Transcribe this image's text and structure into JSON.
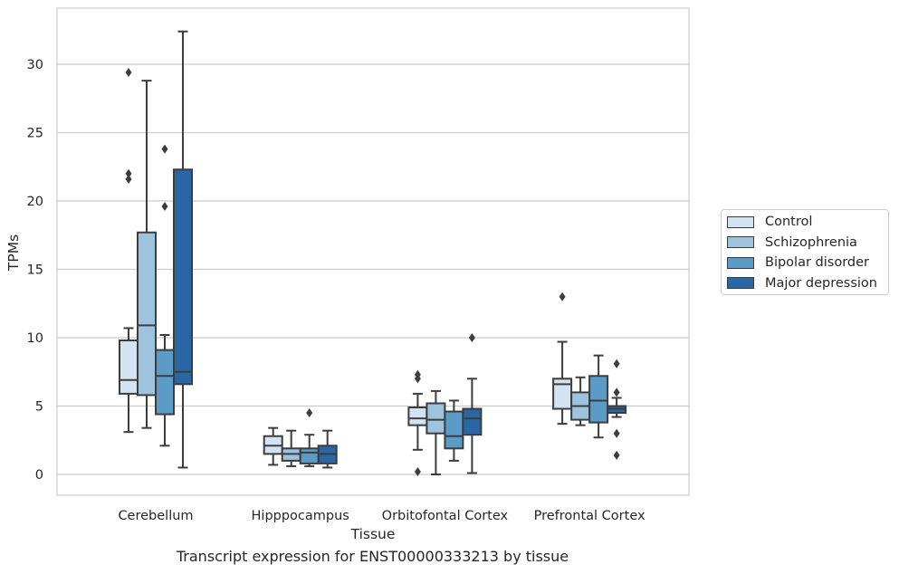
{
  "chart_data": {
    "type": "box",
    "title": "",
    "xlabel": "Tissue",
    "ylabel": "TPMs",
    "caption": "Transcript expression for ENST00000333213 by tissue",
    "categories": [
      "Cerebellum",
      "Hipppocampus",
      "Orbitofontal Cortex",
      "Prefrontal Cortex"
    ],
    "ylim": [
      -1.5,
      34
    ],
    "yticks": [
      0,
      5,
      10,
      15,
      20,
      25,
      30
    ],
    "grid": true,
    "legend_position": "right",
    "series": [
      {
        "name": "Control",
        "color": "#d4e3f2",
        "boxes": [
          {
            "whislo": 3.1,
            "q1": 5.9,
            "med": 6.9,
            "q3": 9.8,
            "whishi": 10.7,
            "fliers": [
              21.6,
              22.0,
              29.4
            ]
          },
          {
            "whislo": 0.7,
            "q1": 1.5,
            "med": 2.1,
            "q3": 2.8,
            "whishi": 3.4,
            "fliers": []
          },
          {
            "whislo": 1.8,
            "q1": 3.6,
            "med": 4.1,
            "q3": 4.9,
            "whishi": 5.9,
            "fliers": [
              0.2,
              7.0,
              7.3
            ]
          },
          {
            "whislo": 3.7,
            "q1": 4.8,
            "med": 6.6,
            "q3": 7.0,
            "whishi": 9.7,
            "fliers": [
              13.0
            ]
          }
        ]
      },
      {
        "name": "Schizophrenia",
        "color": "#9dc3de",
        "boxes": [
          {
            "whislo": 3.4,
            "q1": 5.8,
            "med": 10.9,
            "q3": 17.7,
            "whishi": 28.8,
            "fliers": []
          },
          {
            "whislo": 0.6,
            "q1": 1.0,
            "med": 1.5,
            "q3": 1.9,
            "whishi": 3.2,
            "fliers": []
          },
          {
            "whislo": 0.0,
            "q1": 3.0,
            "med": 4.0,
            "q3": 5.2,
            "whishi": 6.1,
            "fliers": []
          },
          {
            "whislo": 3.6,
            "q1": 4.0,
            "med": 5.0,
            "q3": 6.0,
            "whishi": 7.1,
            "fliers": []
          }
        ]
      },
      {
        "name": "Bipolar disorder",
        "color": "#5a9bc8",
        "boxes": [
          {
            "whislo": 2.1,
            "q1": 4.4,
            "med": 7.2,
            "q3": 9.1,
            "whishi": 10.2,
            "fliers": [
              19.6,
              23.8
            ]
          },
          {
            "whislo": 0.6,
            "q1": 0.8,
            "med": 1.6,
            "q3": 1.9,
            "whishi": 2.9,
            "fliers": [
              4.5
            ]
          },
          {
            "whislo": 1.0,
            "q1": 1.9,
            "med": 2.8,
            "q3": 4.6,
            "whishi": 5.4,
            "fliers": []
          },
          {
            "whislo": 2.7,
            "q1": 3.8,
            "med": 5.4,
            "q3": 7.2,
            "whishi": 8.7,
            "fliers": []
          }
        ]
      },
      {
        "name": "Major depression",
        "color": "#2866a5",
        "boxes": [
          {
            "whislo": 0.5,
            "q1": 6.6,
            "med": 7.5,
            "q3": 22.3,
            "whishi": 32.4,
            "fliers": []
          },
          {
            "whislo": 0.5,
            "q1": 0.8,
            "med": 1.5,
            "q3": 2.1,
            "whishi": 3.2,
            "fliers": []
          },
          {
            "whislo": 0.1,
            "q1": 2.9,
            "med": 4.1,
            "q3": 4.8,
            "whishi": 7.0,
            "fliers": [
              10.0
            ]
          },
          {
            "whislo": 4.2,
            "q1": 4.5,
            "med": 4.8,
            "q3": 5.0,
            "whishi": 5.6,
            "fliers": [
              1.4,
              3.0,
              6.0,
              8.1
            ]
          }
        ]
      }
    ]
  }
}
